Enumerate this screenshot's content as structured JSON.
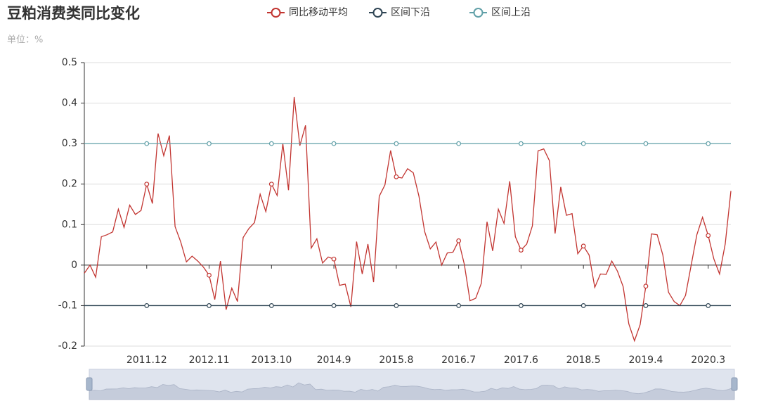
{
  "chart_data": {
    "type": "line",
    "title": "豆粕消费类同比变化",
    "subtitle": "单位：%",
    "categories": [
      null,
      null,
      null,
      null,
      null,
      null,
      null,
      null,
      null,
      null,
      null,
      "2011.12",
      null,
      null,
      null,
      null,
      null,
      null,
      null,
      null,
      null,
      null,
      "2012.11",
      null,
      null,
      null,
      null,
      null,
      null,
      null,
      null,
      null,
      null,
      "2013.10",
      null,
      null,
      null,
      null,
      null,
      null,
      null,
      null,
      null,
      null,
      "2014.9",
      null,
      null,
      null,
      null,
      null,
      null,
      null,
      null,
      null,
      null,
      "2015.8",
      null,
      null,
      null,
      null,
      null,
      null,
      null,
      null,
      null,
      null,
      "2016.7",
      null,
      null,
      null,
      null,
      null,
      null,
      null,
      null,
      null,
      null,
      "2017.6",
      null,
      null,
      null,
      null,
      null,
      null,
      null,
      null,
      null,
      null,
      "2018.5",
      null,
      null,
      null,
      null,
      null,
      null,
      null,
      null,
      null,
      null,
      "2019.4",
      null,
      null,
      null,
      null,
      null,
      null,
      null,
      null,
      null,
      null,
      "2020.3",
      null,
      null,
      null,
      null
    ],
    "series": [
      {
        "name": "同比移动平均",
        "color": "#c23531",
        "values": [
          -0.02,
          0,
          -0.03,
          0.07,
          0.075,
          0.082,
          0.138,
          0.093,
          0.148,
          0.125,
          0.135,
          0.2,
          0.152,
          0.325,
          0.27,
          0.32,
          0.095,
          0.057,
          0.008,
          0.022,
          0.01,
          -0.005,
          -0.025,
          -0.085,
          0.01,
          -0.11,
          -0.057,
          -0.09,
          0.068,
          0.09,
          0.105,
          0.175,
          0.132,
          0.2,
          0.172,
          0.3,
          0.185,
          0.415,
          0.295,
          0.345,
          0.042,
          0.065,
          0.005,
          0.02,
          0.015,
          -0.05,
          -0.047,
          -0.103,
          0.058,
          -0.022,
          0.052,
          -0.042,
          0.17,
          0.198,
          0.283,
          0.218,
          0.215,
          0.238,
          0.228,
          0.17,
          0.083,
          0.04,
          0.057,
          0,
          0.03,
          0.032,
          0.06,
          0.002,
          -0.088,
          -0.082,
          -0.045,
          0.107,
          0.035,
          0.138,
          0.103,
          0.207,
          0.07,
          0.037,
          0.052,
          0.097,
          0.282,
          0.287,
          0.258,
          0.078,
          0.193,
          0.123,
          0.127,
          0.028,
          0.047,
          0.025,
          -0.055,
          -0.022,
          -0.023,
          0.01,
          -0.015,
          -0.053,
          -0.145,
          -0.187,
          -0.147,
          -0.052,
          0.077,
          0.075,
          0.025,
          -0.067,
          -0.09,
          -0.1,
          -0.075,
          0,
          0.075,
          0.118,
          0.073,
          0.015,
          -0.022,
          0.052,
          0.183
        ]
      },
      {
        "name": "区间下沿",
        "color": "#2f4554",
        "values": [
          -0.1,
          -0.1,
          -0.1,
          -0.1,
          -0.1,
          -0.1,
          -0.1,
          -0.1,
          -0.1,
          -0.1,
          -0.1,
          -0.1,
          -0.1,
          -0.1,
          -0.1,
          -0.1,
          -0.1,
          -0.1,
          -0.1,
          -0.1,
          -0.1,
          -0.1,
          -0.1,
          -0.1,
          -0.1,
          -0.1,
          -0.1,
          -0.1,
          -0.1,
          -0.1,
          -0.1,
          -0.1,
          -0.1,
          -0.1,
          -0.1,
          -0.1,
          -0.1,
          -0.1,
          -0.1,
          -0.1,
          -0.1,
          -0.1,
          -0.1,
          -0.1,
          -0.1,
          -0.1,
          -0.1,
          -0.1,
          -0.1,
          -0.1,
          -0.1,
          -0.1,
          -0.1,
          -0.1,
          -0.1,
          -0.1,
          -0.1,
          -0.1,
          -0.1,
          -0.1,
          -0.1,
          -0.1,
          -0.1,
          -0.1,
          -0.1,
          -0.1,
          -0.1,
          -0.1,
          -0.1,
          -0.1,
          -0.1,
          -0.1,
          -0.1,
          -0.1,
          -0.1,
          -0.1,
          -0.1,
          -0.1,
          -0.1,
          -0.1,
          -0.1,
          -0.1,
          -0.1,
          -0.1,
          -0.1,
          -0.1,
          -0.1,
          -0.1,
          -0.1,
          -0.1,
          -0.1,
          -0.1,
          -0.1,
          -0.1,
          -0.1,
          -0.1,
          -0.1,
          -0.1,
          -0.1,
          -0.1,
          -0.1,
          -0.1,
          -0.1,
          -0.1,
          -0.1,
          -0.1,
          -0.1,
          -0.1,
          -0.1,
          -0.1,
          -0.1,
          -0.1,
          -0.1,
          -0.1,
          -0.1
        ]
      },
      {
        "name": "区间上沿",
        "color": "#61a0a8",
        "values": [
          0.3,
          0.3,
          0.3,
          0.3,
          0.3,
          0.3,
          0.3,
          0.3,
          0.3,
          0.3,
          0.3,
          0.3,
          0.3,
          0.3,
          0.3,
          0.3,
          0.3,
          0.3,
          0.3,
          0.3,
          0.3,
          0.3,
          0.3,
          0.3,
          0.3,
          0.3,
          0.3,
          0.3,
          0.3,
          0.3,
          0.3,
          0.3,
          0.3,
          0.3,
          0.3,
          0.3,
          0.3,
          0.3,
          0.3,
          0.3,
          0.3,
          0.3,
          0.3,
          0.3,
          0.3,
          0.3,
          0.3,
          0.3,
          0.3,
          0.3,
          0.3,
          0.3,
          0.3,
          0.3,
          0.3,
          0.3,
          0.3,
          0.3,
          0.3,
          0.3,
          0.3,
          0.3,
          0.3,
          0.3,
          0.3,
          0.3,
          0.3,
          0.3,
          0.3,
          0.3,
          0.3,
          0.3,
          0.3,
          0.3,
          0.3,
          0.3,
          0.3,
          0.3,
          0.3,
          0.3,
          0.3,
          0.3,
          0.3,
          0.3,
          0.3,
          0.3,
          0.3,
          0.3,
          0.3,
          0.3,
          0.3,
          0.3,
          0.3,
          0.3,
          0.3,
          0.3,
          0.3,
          0.3,
          0.3,
          0.3,
          0.3,
          0.3,
          0.3,
          0.3,
          0.3,
          0.3,
          0.3,
          0.3,
          0.3,
          0.3,
          0.3,
          0.3,
          0.3,
          0.3,
          0.3
        ]
      }
    ],
    "ylim": [
      -0.2,
      0.5
    ],
    "yticks": [
      -0.2,
      -0.1,
      0,
      0.1,
      0.2,
      0.3,
      0.4,
      0.5
    ],
    "grid": true
  }
}
